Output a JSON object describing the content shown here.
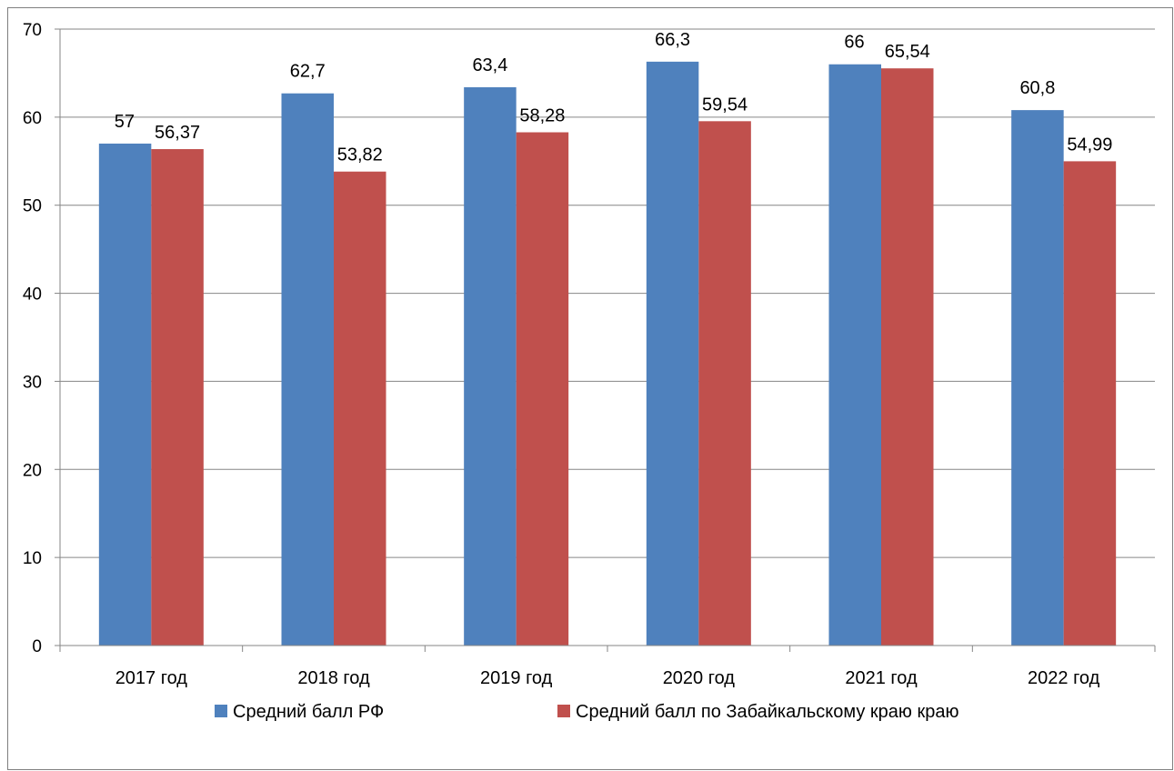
{
  "chart_data": {
    "type": "bar",
    "categories": [
      "2017 год",
      "2018 год",
      "2019 год",
      "2020 год",
      "2021 год",
      "2022 год"
    ],
    "series": [
      {
        "name": "Средний балл РФ",
        "values": [
          57,
          62.7,
          63.4,
          66.3,
          66,
          60.8
        ],
        "labels": [
          "57",
          "62,7",
          "63,4",
          "66,3",
          "66",
          "60,8"
        ],
        "color": "#4F81BD"
      },
      {
        "name": "Средний балл по Забайкальскому краю краю",
        "values": [
          56.37,
          53.82,
          58.28,
          59.54,
          65.54,
          54.99
        ],
        "labels": [
          "56,37",
          "53,82",
          "58,28",
          "59,54",
          "65,54",
          "54,99"
        ],
        "color": "#C0504D"
      }
    ],
    "ylim": [
      0,
      70
    ],
    "yticks": [
      0,
      10,
      20,
      30,
      40,
      50,
      60,
      70
    ],
    "grid": true,
    "legend_position": "bottom",
    "gridline_color": "#868686"
  }
}
